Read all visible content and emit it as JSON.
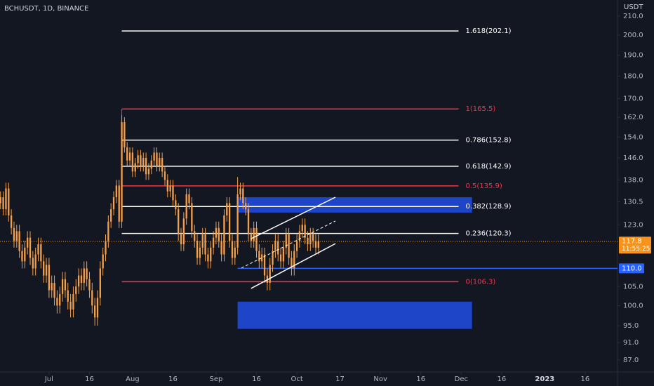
{
  "chart_data": {
    "type": "candlestick",
    "title": "BCHUSDT, 1D, BINANCE",
    "y_unit": "USDT",
    "color": "#f5a048",
    "log_scale": true,
    "xlim": [
      -18.2,
      211
    ],
    "ylim": [
      83.6,
      218.8
    ],
    "xticks": [
      {
        "value": 0,
        "label": "Jul"
      },
      {
        "value": 15,
        "label": "16"
      },
      {
        "value": 31,
        "label": "Aug"
      },
      {
        "value": 46,
        "label": "16"
      },
      {
        "value": 62,
        "label": "Sep"
      },
      {
        "value": 77,
        "label": "16"
      },
      {
        "value": 92,
        "label": "Oct"
      },
      {
        "value": 108,
        "label": "17"
      },
      {
        "value": 123,
        "label": "Nov"
      },
      {
        "value": 138,
        "label": "16"
      },
      {
        "value": 153,
        "label": "Dec"
      },
      {
        "value": 168,
        "label": "16"
      },
      {
        "value": 184,
        "label": "2023"
      },
      {
        "value": 199,
        "label": "16"
      }
    ],
    "yticks": [
      {
        "value": 210,
        "label": "210.0"
      },
      {
        "value": 200,
        "label": "200.0"
      },
      {
        "value": 190,
        "label": "190.0"
      },
      {
        "value": 180,
        "label": "180.0"
      },
      {
        "value": 170,
        "label": "170.0"
      },
      {
        "value": 162,
        "label": "162.0"
      },
      {
        "value": 154,
        "label": "154.0"
      },
      {
        "value": 146,
        "label": "146.0"
      },
      {
        "value": 138,
        "label": "138.0"
      },
      130.5,
      {
        "value": 123,
        "label": "123.0"
      },
      {
        "value": 105,
        "label": "105.0"
      },
      {
        "value": 100,
        "label": "100.0"
      },
      {
        "value": 95,
        "label": "95.0"
      },
      {
        "value": 91,
        "label": "91.0"
      },
      {
        "value": 87,
        "label": "87.0"
      }
    ],
    "x": [
      -18,
      -17,
      -16,
      -15,
      -14,
      -13,
      -12,
      -11,
      -10,
      -9,
      -8,
      -7,
      -6,
      -5,
      -4,
      -3,
      -2,
      -1,
      0,
      1,
      2,
      3,
      4,
      5,
      6,
      7,
      8,
      9,
      10,
      11,
      12,
      13,
      14,
      15,
      16,
      17,
      18,
      19,
      20,
      21,
      22,
      23,
      24,
      25,
      26,
      27,
      28,
      29,
      30,
      31,
      32,
      33,
      34,
      35,
      36,
      37,
      38,
      39,
      40,
      41,
      42,
      43,
      44,
      45,
      46,
      47,
      48,
      49,
      50,
      51,
      52,
      53,
      54,
      55,
      56,
      57,
      58,
      59,
      60,
      61,
      62,
      63,
      64,
      65,
      66,
      67,
      68,
      69,
      70,
      71,
      72,
      73,
      74,
      75,
      76,
      77,
      78,
      79,
      80,
      81,
      82,
      83,
      84,
      85,
      86,
      87,
      88,
      89,
      90,
      91,
      92,
      93,
      94,
      95,
      96,
      97,
      98,
      99,
      100
    ],
    "open": [
      130,
      132,
      128,
      135,
      126,
      122,
      118,
      121,
      115,
      112,
      116,
      119,
      113,
      110,
      114,
      117,
      112,
      108,
      111,
      104,
      106,
      102,
      100,
      103,
      107,
      104,
      101,
      99,
      103,
      105,
      108,
      106,
      110,
      107,
      104,
      100,
      97,
      102,
      110,
      114,
      118,
      124,
      128,
      132,
      136,
      124,
      160,
      150,
      145,
      148,
      141,
      144,
      147,
      143,
      146,
      140,
      142,
      145,
      148,
      143,
      146,
      141,
      138,
      134,
      136,
      131,
      128,
      120,
      117,
      125,
      133,
      130,
      121,
      118,
      113,
      116,
      120,
      114,
      112,
      116,
      119,
      122,
      118,
      114,
      126,
      130,
      118,
      113,
      116,
      133,
      135,
      130,
      128,
      120,
      118,
      122,
      115,
      112,
      114,
      108,
      106,
      111,
      115,
      118,
      114,
      112,
      116,
      120,
      113,
      110,
      115,
      118,
      121,
      123,
      119,
      117,
      120,
      118,
      116
    ],
    "high": [
      134,
      134,
      137,
      137,
      128,
      124,
      123,
      123,
      117,
      118,
      121,
      121,
      115,
      116,
      119,
      119,
      114,
      113,
      113,
      108,
      108,
      104,
      105,
      109,
      109,
      106,
      103,
      105,
      107,
      110,
      110,
      112,
      112,
      109,
      106,
      102,
      104,
      112,
      116,
      120,
      126,
      130,
      134,
      138,
      138,
      163,
      162,
      152,
      150,
      150,
      146,
      149,
      149,
      148,
      148,
      144,
      147,
      150,
      150,
      148,
      148,
      143,
      140,
      138,
      138,
      133,
      130,
      122,
      127,
      135,
      135,
      132,
      123,
      120,
      118,
      122,
      122,
      116,
      118,
      121,
      124,
      124,
      120,
      128,
      132,
      132,
      120,
      118,
      139,
      137,
      137,
      132,
      130,
      122,
      124,
      124,
      117,
      116,
      116,
      110,
      113,
      117,
      120,
      120,
      116,
      118,
      122,
      122,
      115,
      117,
      120,
      123,
      125,
      125,
      121,
      122,
      122,
      120,
      120
    ],
    "low": [
      128,
      126,
      126,
      124,
      120,
      116,
      116,
      113,
      110,
      110,
      114,
      111,
      108,
      108,
      112,
      110,
      106,
      106,
      102,
      102,
      100,
      98,
      98,
      101,
      102,
      99,
      97,
      97,
      101,
      103,
      104,
      104,
      105,
      102,
      98,
      95,
      95,
      100,
      108,
      112,
      116,
      122,
      126,
      130,
      122,
      122,
      148,
      143,
      143,
      139,
      139,
      142,
      141,
      141,
      138,
      138,
      140,
      143,
      141,
      141,
      139,
      136,
      132,
      132,
      129,
      126,
      118,
      115,
      115,
      123,
      128,
      119,
      116,
      111,
      111,
      114,
      112,
      110,
      110,
      114,
      117,
      116,
      112,
      112,
      124,
      116,
      111,
      111,
      114,
      131,
      128,
      126,
      118,
      116,
      116,
      113,
      110,
      110,
      106,
      104,
      104,
      109,
      113,
      112,
      110,
      110,
      114,
      111,
      108,
      108,
      113,
      116,
      119,
      117,
      115,
      115,
      116,
      114,
      114
    ],
    "close": [
      132,
      128,
      135,
      126,
      122,
      118,
      121,
      115,
      112,
      116,
      119,
      113,
      110,
      114,
      117,
      112,
      108,
      111,
      104,
      106,
      102,
      100,
      103,
      107,
      104,
      101,
      99,
      103,
      105,
      108,
      106,
      110,
      107,
      104,
      100,
      97,
      102,
      110,
      114,
      118,
      124,
      128,
      132,
      136,
      124,
      160,
      150,
      145,
      148,
      141,
      144,
      147,
      143,
      146,
      140,
      142,
      145,
      148,
      143,
      146,
      141,
      138,
      134,
      136,
      131,
      128,
      120,
      117,
      125,
      133,
      130,
      121,
      118,
      113,
      116,
      120,
      114,
      112,
      116,
      119,
      122,
      118,
      114,
      126,
      130,
      118,
      113,
      116,
      133,
      135,
      130,
      128,
      120,
      118,
      122,
      115,
      112,
      114,
      108,
      106,
      111,
      115,
      118,
      114,
      112,
      116,
      120,
      113,
      110,
      115,
      118,
      121,
      123,
      119,
      117,
      120,
      118,
      116,
      118
    ],
    "fib_start": 27,
    "fib_end": 152,
    "fib_levels": [
      {
        "label": "1.618(202.1)",
        "value": 202.1,
        "color": "#ffffff"
      },
      {
        "label": "1(165.5)",
        "value": 165.5,
        "color": "#f23645"
      },
      {
        "label": "0.786(152.8)",
        "value": 152.8,
        "color": "#ffffff"
      },
      {
        "label": "0.618(142.9)",
        "value": 142.9,
        "color": "#ffffff"
      },
      {
        "label": "0.5(135.9)",
        "value": 135.9,
        "color": "#f23645"
      },
      {
        "label": "0.382(128.9)",
        "value": 128.9,
        "color": "#ffffff"
      },
      {
        "label": "0.236(120.3)",
        "value": 120.3,
        "color": "#ffffff"
      },
      {
        "label": "0(106.3)",
        "value": 106.3,
        "color": "#f23645"
      }
    ],
    "zones": [
      {
        "x0": 70,
        "x1": 157,
        "y0": 126.9,
        "y1": 132.0,
        "color": "#1e44c8"
      },
      {
        "x0": 70,
        "x1": 157,
        "y0": 94.2,
        "y1": 101.0,
        "color": "#1e44c8"
      }
    ],
    "trend_lines": [
      {
        "x": [
          75,
          106.3
        ],
        "y": [
          118.7,
          132.0
        ],
        "color": "#ffffff",
        "dashed": false
      },
      {
        "x": [
          75,
          106.3
        ],
        "y": [
          104.5,
          117.2
        ],
        "color": "#ffffff",
        "dashed": false
      },
      {
        "x": [
          71.4,
          106.3
        ],
        "y": [
          110.1,
          124.2
        ],
        "color": "#ffffff",
        "dashed": true
      }
    ],
    "level_line": {
      "value": 110,
      "label": "110.0",
      "start": 70,
      "color": "#2962ff"
    },
    "price_line": {
      "value": 117.8,
      "countdown": "11:55:25",
      "color": "#f7931a"
    }
  }
}
